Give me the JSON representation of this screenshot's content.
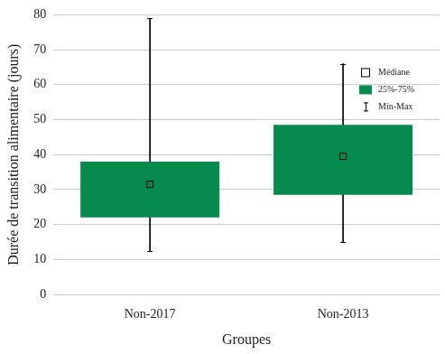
{
  "chart_data": {
    "type": "box",
    "xlabel": "Groupes",
    "ylabel": "Durée de transition alimentaire (jours)",
    "categories": [
      "Non-2017",
      "Non-2013"
    ],
    "series": [
      {
        "name": "Médiane",
        "type": "scatter",
        "marker": "square",
        "color": "#000000",
        "values": [
          31.5,
          39.5
        ]
      },
      {
        "name": "25%-75%",
        "type": "bar",
        "color": "#078a4e",
        "values": [
          [
            22,
            38
          ],
          [
            28.5,
            48.5
          ]
        ]
      },
      {
        "name": "Min-Max",
        "type": "whisker",
        "color": "#000000",
        "values": [
          [
            12.5,
            79
          ],
          [
            15,
            66
          ]
        ]
      }
    ],
    "ylim": [
      0,
      80
    ],
    "yticks": [
      0,
      10,
      20,
      30,
      40,
      50,
      60,
      70,
      80
    ],
    "grid": true,
    "legend": "upper right"
  }
}
